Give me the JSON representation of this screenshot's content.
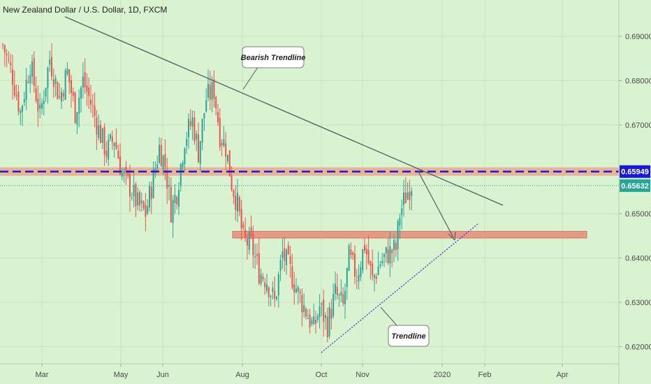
{
  "chart_data": {
    "type": "candlestick",
    "title": "New Zealand Dollar / U.S. Dollar, 1D, FXCM",
    "y_ticks": [
      "0.62000",
      "0.63000",
      "0.64000",
      "0.65000",
      "0.66000",
      "0.67000",
      "0.68000",
      "0.69000"
    ],
    "x_ticks": [
      "Mar",
      "May",
      "Jun",
      "Aug",
      "Oct",
      "Nov",
      "2020",
      "Feb",
      "Apr"
    ],
    "ylim": [
      0.618,
      0.698
    ],
    "resistance_level": {
      "value": 0.65949,
      "label": "0.65949"
    },
    "current_price": {
      "value": 0.65632,
      "label": "0.65632"
    },
    "support_zone": {
      "low": 0.6445,
      "high": 0.646
    },
    "bearish_trendline": {
      "label": "Bearish Trendline"
    },
    "trendline": {
      "label": "Trendline"
    },
    "price_path_anchors": [
      [
        0,
        0.688
      ],
      [
        5,
        0.681
      ],
      [
        9,
        0.673
      ],
      [
        14,
        0.684
      ],
      [
        19,
        0.672
      ],
      [
        24,
        0.685
      ],
      [
        29,
        0.676
      ],
      [
        33,
        0.682
      ],
      [
        37,
        0.673
      ],
      [
        41,
        0.68
      ],
      [
        45,
        0.675
      ],
      [
        49,
        0.669
      ],
      [
        53,
        0.664
      ],
      [
        57,
        0.667
      ],
      [
        61,
        0.659
      ],
      [
        65,
        0.656
      ],
      [
        69,
        0.652
      ],
      [
        73,
        0.65
      ],
      [
        77,
        0.658
      ],
      [
        80,
        0.665
      ],
      [
        83,
        0.661
      ],
      [
        86,
        0.651
      ],
      [
        89,
        0.655
      ],
      [
        93,
        0.667
      ],
      [
        97,
        0.671
      ],
      [
        100,
        0.664
      ],
      [
        104,
        0.676
      ],
      [
        108,
        0.678
      ],
      [
        111,
        0.668
      ],
      [
        114,
        0.665
      ],
      [
        117,
        0.657
      ],
      [
        120,
        0.652
      ],
      [
        123,
        0.644
      ],
      [
        127,
        0.643
      ],
      [
        131,
        0.637
      ],
      [
        135,
        0.635
      ],
      [
        139,
        0.63
      ],
      [
        143,
        0.641
      ],
      [
        147,
        0.637
      ],
      [
        151,
        0.632
      ],
      [
        155,
        0.628
      ],
      [
        159,
        0.624
      ],
      [
        162,
        0.629
      ],
      [
        166,
        0.625
      ],
      [
        170,
        0.632
      ],
      [
        174,
        0.629
      ],
      [
        177,
        0.64
      ],
      [
        181,
        0.636
      ],
      [
        185,
        0.643
      ],
      [
        189,
        0.635
      ],
      [
        193,
        0.639
      ],
      [
        197,
        0.641
      ],
      [
        201,
        0.642
      ],
      [
        203,
        0.65
      ],
      [
        206,
        0.654
      ],
      [
        209,
        0.657
      ]
    ]
  }
}
